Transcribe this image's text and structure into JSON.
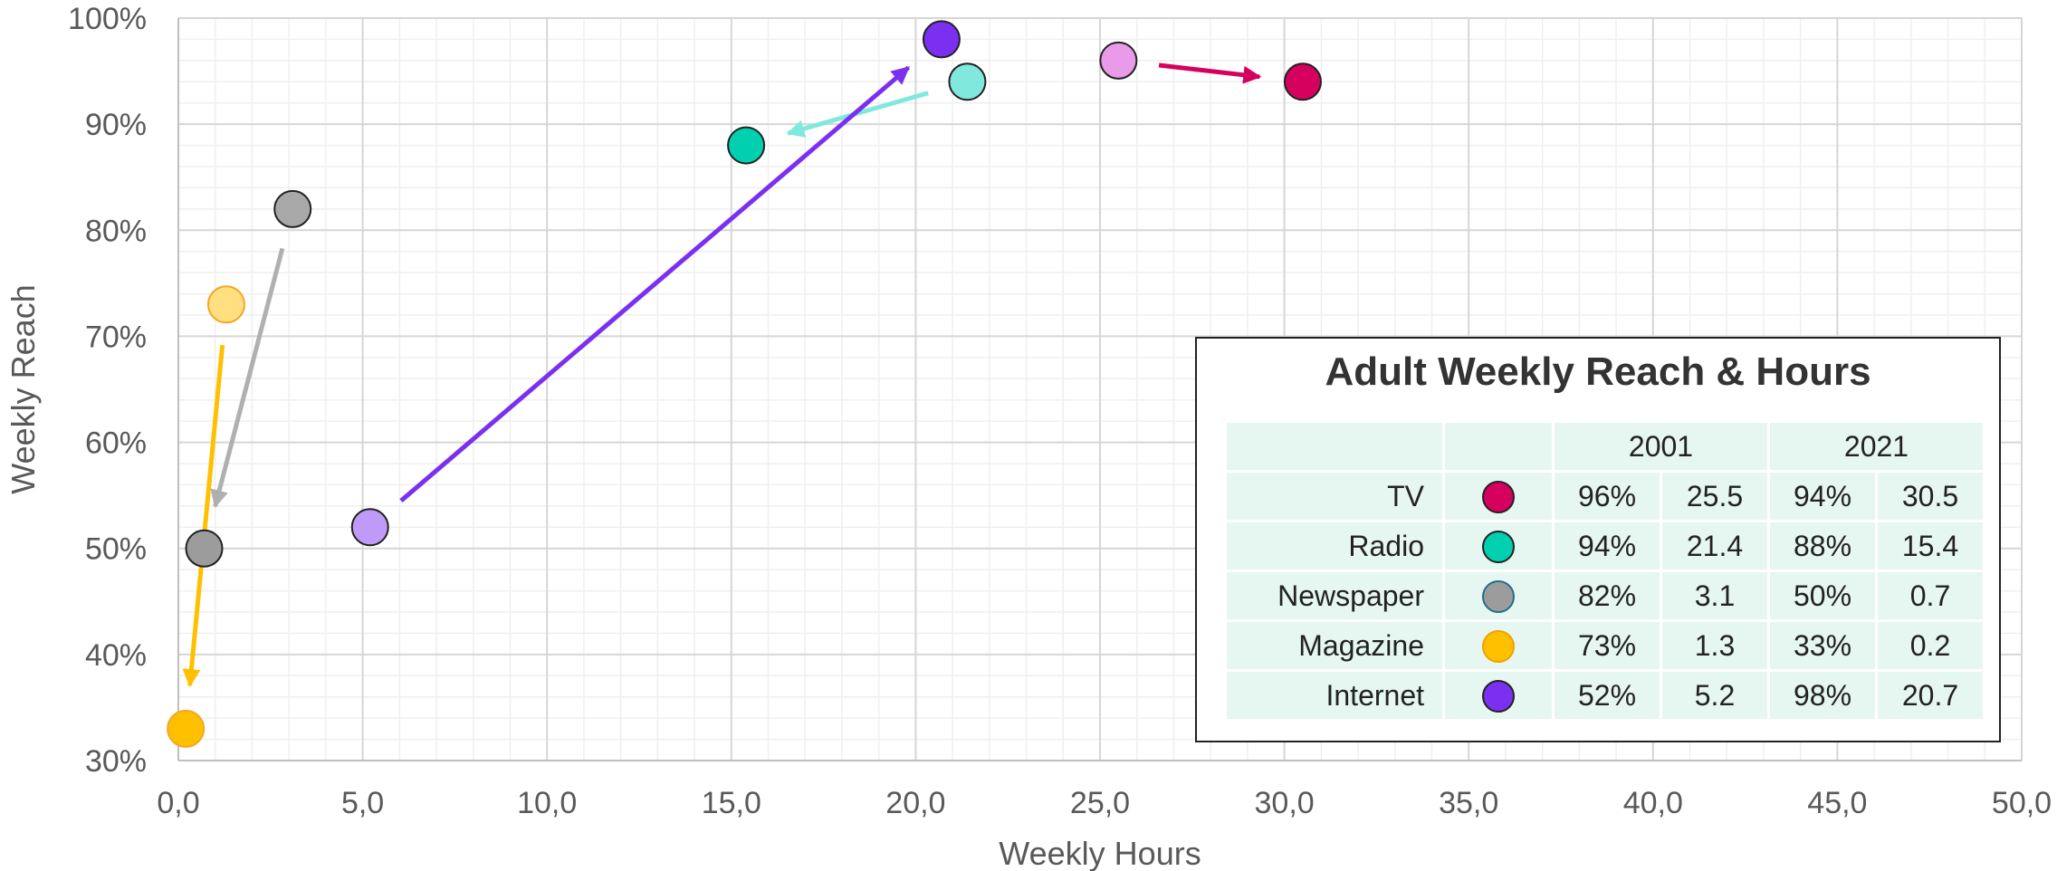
{
  "chart_data": {
    "type": "scatter",
    "title": "",
    "xlabel": "Weekly Hours",
    "ylabel": "Weekly Reach",
    "xlim": [
      0,
      50
    ],
    "ylim": [
      30,
      100
    ],
    "x_ticks": [
      "0,0",
      "5,0",
      "10,0",
      "15,0",
      "20,0",
      "25,0",
      "30,0",
      "35,0",
      "40,0",
      "45,0",
      "50,0"
    ],
    "y_ticks": [
      "30%",
      "40%",
      "50%",
      "60%",
      "70%",
      "80%",
      "90%",
      "100%"
    ],
    "grid": true,
    "series": [
      {
        "name": "TV",
        "color": "#d6005e",
        "color_2001": "#e99ae8",
        "y2001": 96,
        "x2001": 25.5,
        "y2021": 94,
        "x2021": 30.5
      },
      {
        "name": "Radio",
        "color": "#00d0b0",
        "color_2001": "#80e8dc",
        "y2001": 94,
        "x2001": 21.4,
        "y2021": 88,
        "x2021": 15.4
      },
      {
        "name": "Newspaper",
        "color": "#9c9c9c",
        "color_2001": "#a8a8a8",
        "y2001": 82,
        "x2001": 3.1,
        "y2021": 50,
        "x2021": 0.7
      },
      {
        "name": "Magazine",
        "color": "#ffc000",
        "color_2001": "#ffe080",
        "y2001": 73,
        "x2001": 1.3,
        "y2021": 33,
        "x2021": 0.2
      },
      {
        "name": "Internet",
        "color": "#7b2ff0",
        "color_2001": "#c09af8",
        "y2001": 52,
        "x2001": 5.2,
        "y2021": 98,
        "x2021": 20.7
      }
    ],
    "arrow_colors": {
      "TV": "#d6005e",
      "Radio": "#80e8dc",
      "Newspaper": "#b0b0b0",
      "Magazine": "#ffc000",
      "Internet": "#7b2ff0"
    }
  },
  "legend": {
    "title": "Adult Weekly Reach & Hours",
    "year_a": "2001",
    "year_b": "2021",
    "rows": [
      {
        "name": "TV",
        "color": "#d6005e",
        "reach_2001": "96%",
        "hours_2001": "25.5",
        "reach_2021": "94%",
        "hours_2021": "30.5"
      },
      {
        "name": "Radio",
        "color": "#00d0b0",
        "reach_2001": "94%",
        "hours_2001": "21.4",
        "reach_2021": "88%",
        "hours_2021": "15.4"
      },
      {
        "name": "Newspaper",
        "color": "#9c9c9c",
        "reach_2001": "82%",
        "hours_2001": "3.1",
        "reach_2021": "50%",
        "hours_2021": "0.7"
      },
      {
        "name": "Magazine",
        "color": "#ffc000",
        "reach_2001": "73%",
        "hours_2001": "1.3",
        "reach_2021": "33%",
        "hours_2021": "0.2"
      },
      {
        "name": "Internet",
        "color": "#7b2ff0",
        "reach_2001": "52%",
        "hours_2001": "5.2",
        "reach_2021": "98%",
        "hours_2021": "20.7"
      }
    ]
  }
}
